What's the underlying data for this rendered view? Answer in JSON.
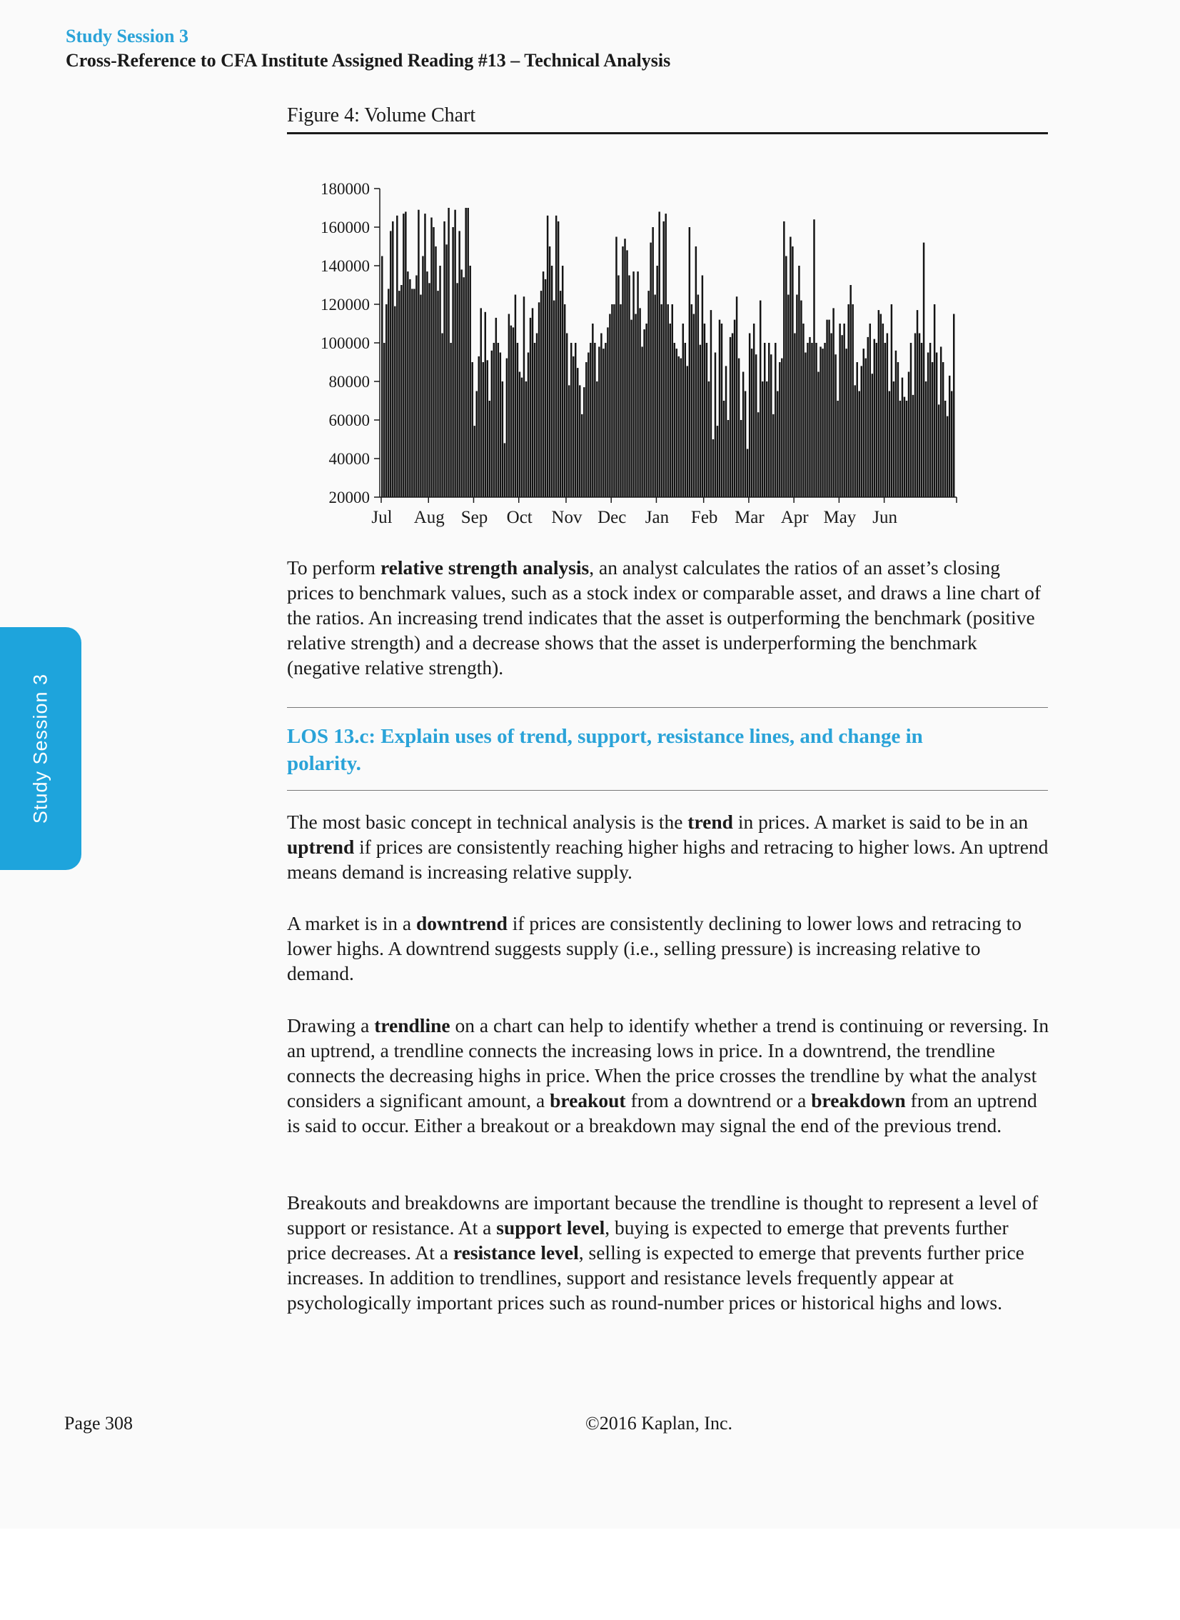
{
  "header": {
    "series": "Study Session 3",
    "reference": "Cross-Reference to CFA Institute Assigned Reading #13 – Technical Analysis"
  },
  "figure": {
    "title": "Figure 4: Volume Chart"
  },
  "chart_data": {
    "type": "bar",
    "title": "",
    "xlabel": "",
    "ylabel": "",
    "ylim": [
      20000,
      180000
    ],
    "yticks": [
      180000,
      160000,
      140000,
      120000,
      100000,
      80000,
      60000,
      40000,
      20000
    ],
    "ytick_labels": [
      "180000",
      "160000",
      "140000",
      "120000",
      "100000",
      "80000",
      "60000",
      "40000",
      "20000"
    ],
    "month_labels": [
      "Jul",
      "Aug",
      "Sep",
      "Oct",
      "Nov",
      "Dec",
      "Jan",
      "Feb",
      "Mar",
      "Apr",
      "May",
      "Jun"
    ],
    "month_start_index": [
      0,
      22,
      43,
      64,
      86,
      107,
      128,
      150,
      171,
      192,
      213,
      234
    ],
    "color": "#141414",
    "values": [
      145000,
      100000,
      120000,
      128000,
      158000,
      163000,
      119000,
      166000,
      127000,
      130000,
      167000,
      168000,
      137000,
      133000,
      128000,
      128000,
      135000,
      169000,
      125000,
      145000,
      167000,
      137000,
      131000,
      165000,
      160000,
      150000,
      127000,
      140000,
      105000,
      163000,
      151000,
      170000,
      100000,
      160000,
      169000,
      131000,
      158000,
      138000,
      134000,
      170000,
      170000,
      140000,
      90000,
      57000,
      75000,
      93000,
      118000,
      90000,
      116000,
      91000,
      70000,
      96000,
      100000,
      113000,
      100000,
      95000,
      80000,
      48000,
      92000,
      115000,
      109000,
      108000,
      125000,
      100000,
      85000,
      82000,
      124000,
      80000,
      95000,
      113000,
      118000,
      100000,
      105000,
      121000,
      127000,
      137000,
      133000,
      166000,
      150000,
      140000,
      122000,
      166000,
      163000,
      127000,
      140000,
      120000,
      105000,
      78000,
      100000,
      93000,
      100000,
      87000,
      78000,
      63000,
      77000,
      90000,
      95000,
      100000,
      110000,
      100000,
      80000,
      98000,
      105000,
      97000,
      100000,
      108000,
      115000,
      120000,
      120000,
      155000,
      135000,
      120000,
      150000,
      154000,
      148000,
      135000,
      112000,
      137000,
      115000,
      137000,
      118000,
      98000,
      107000,
      110000,
      127000,
      152000,
      160000,
      125000,
      140000,
      168000,
      120000,
      163000,
      167000,
      120000,
      110000,
      120000,
      100000,
      97000,
      93000,
      92000,
      110000,
      100000,
      88000,
      160000,
      120000,
      115000,
      150000,
      125000,
      99000,
      135000,
      110000,
      100000,
      80000,
      117000,
      50000,
      95000,
      57000,
      112000,
      110000,
      70000,
      88000,
      60000,
      103000,
      105000,
      112000,
      124000,
      92000,
      60000,
      85000,
      75000,
      45000,
      105000,
      97000,
      110000,
      94000,
      64000,
      122000,
      80000,
      100000,
      80000,
      100000,
      94000,
      63000,
      100000,
      75000,
      90000,
      92000,
      163000,
      145000,
      125000,
      155000,
      150000,
      105000,
      125000,
      140000,
      122000,
      110000,
      95000,
      100000,
      103000,
      100000,
      164000,
      100000,
      85000,
      98000,
      97000,
      100000,
      112000,
      112000,
      105000,
      118000,
      94000,
      70000,
      110000,
      104000,
      110000,
      97000,
      120000,
      130000,
      120000,
      78000,
      90000,
      75000,
      88000,
      97000,
      92000,
      103000,
      110000,
      84000,
      102000,
      100000,
      117000,
      115000,
      110000,
      100000,
      105000,
      75000,
      120000,
      80000,
      96000,
      90000,
      70000,
      82000,
      72000,
      70000,
      85000,
      100000,
      73000,
      105000,
      117000,
      105000,
      100000,
      152000,
      80000,
      95000,
      100000,
      90000,
      120000,
      95000,
      68000,
      98000,
      90000,
      70000,
      62000,
      83000,
      75000,
      115000
    ]
  },
  "paragraphs": {
    "p1": [
      {
        "t": "To perform "
      },
      {
        "t": "relative strength analysis",
        "b": true
      },
      {
        "t": ", an analyst calculates the ratios of an asset’s closing prices to benchmark values, such as a stock index or comparable asset, and draws a line chart of the ratios. An increasing trend indicates that the asset is outperforming the benchmark (positive relative strength) and a decrease shows that the asset is underperforming the benchmark (negative relative strength)."
      }
    ],
    "los": "LOS 13.c: Explain uses of trend, support, resistance lines, and change in polarity.",
    "p2": [
      {
        "t": "The most basic concept in technical analysis is the "
      },
      {
        "t": "trend",
        "b": true
      },
      {
        "t": " in prices. A market is said to be in an "
      },
      {
        "t": "uptrend",
        "b": true
      },
      {
        "t": " if prices are consistently reaching higher highs and retracing to higher lows. An uptrend means demand is increasing relative supply."
      }
    ],
    "p3": [
      {
        "t": "A market is in a "
      },
      {
        "t": "downtrend",
        "b": true
      },
      {
        "t": " if prices are consistently declining to lower lows and retracing to lower highs. A downtrend suggests supply (i.e., selling pressure) is increasing relative to demand."
      }
    ],
    "p4": [
      {
        "t": "Drawing a "
      },
      {
        "t": "trendline",
        "b": true
      },
      {
        "t": " on a chart can help to identify whether a trend is continuing or reversing. In an uptrend, a trendline connects the increasing lows in price. In a downtrend, the trendline connects the decreasing highs in price. When the price crosses the trendline by what the analyst considers a significant amount, a "
      },
      {
        "t": "breakout",
        "b": true
      },
      {
        "t": " from a downtrend or a "
      },
      {
        "t": "breakdown",
        "b": true
      },
      {
        "t": " from an uptrend is said to occur. Either a breakout or a breakdown may signal the end of the previous trend."
      }
    ],
    "p5": [
      {
        "t": "Breakouts and breakdowns are important because the trendline is thought to represent a level of support or resistance. At a "
      },
      {
        "t": "support level",
        "b": true
      },
      {
        "t": ", buying is expected to emerge that prevents further price decreases. At a "
      },
      {
        "t": "resistance level",
        "b": true
      },
      {
        "t": ", selling is expected to emerge that prevents further price increases. In addition to trendlines, support and resistance levels frequently appear at psychologically important prices such as round-number prices or historical highs and lows."
      }
    ]
  },
  "side_tab": {
    "label": "Study Session 3",
    "color": "#1ea4dc"
  },
  "accent_color": "#2aa3d8",
  "footer": {
    "page": "Page 308",
    "copyright": "©2016 Kaplan, Inc."
  }
}
